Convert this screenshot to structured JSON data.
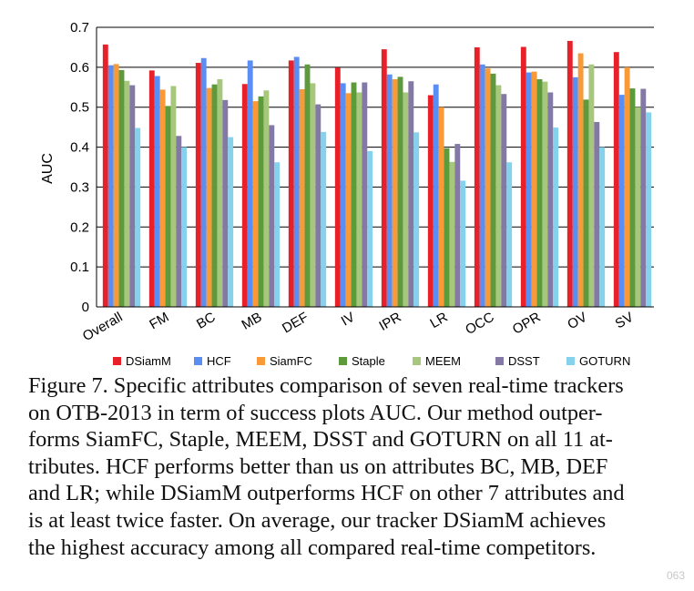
{
  "chart_data": {
    "type": "bar",
    "ylabel": "AUC",
    "ylim": [
      0,
      0.7
    ],
    "yticks": [
      "0",
      "0.1",
      "0.2",
      "0.3",
      "0.4",
      "0.5",
      "0.6",
      "0.7"
    ],
    "grid": "horizontal",
    "legend_position": "bottom",
    "categories": [
      "Overall",
      "FM",
      "BC",
      "MB",
      "DEF",
      "IV",
      "IPR",
      "LR",
      "OCC",
      "OPR",
      "OV",
      "SV"
    ],
    "series": [
      {
        "name": "DSiamM",
        "color": "#e8202a",
        "values": [
          0.657,
          0.592,
          0.611,
          0.558,
          0.617,
          0.599,
          0.645,
          0.53,
          0.65,
          0.651,
          0.666,
          0.638
        ]
      },
      {
        "name": "HCF",
        "color": "#5a8ef2",
        "values": [
          0.605,
          0.578,
          0.623,
          0.617,
          0.626,
          0.56,
          0.582,
          0.557,
          0.607,
          0.587,
          0.575,
          0.531
        ]
      },
      {
        "name": "SiamFC",
        "color": "#f89a38",
        "values": [
          0.608,
          0.544,
          0.548,
          0.515,
          0.545,
          0.535,
          0.57,
          0.5,
          0.597,
          0.589,
          0.635,
          0.6
        ]
      },
      {
        "name": "Staple",
        "color": "#5d9a3c",
        "values": [
          0.593,
          0.503,
          0.557,
          0.527,
          0.607,
          0.562,
          0.576,
          0.397,
          0.584,
          0.57,
          0.519,
          0.547
        ]
      },
      {
        "name": "MEEM",
        "color": "#a7c77d",
        "values": [
          0.566,
          0.553,
          0.57,
          0.542,
          0.56,
          0.537,
          0.537,
          0.363,
          0.555,
          0.564,
          0.607,
          0.5
        ]
      },
      {
        "name": "DSST",
        "color": "#8478a4",
        "values": [
          0.555,
          0.428,
          0.518,
          0.455,
          0.507,
          0.562,
          0.565,
          0.408,
          0.533,
          0.537,
          0.463,
          0.546
        ]
      },
      {
        "name": "GOTURN",
        "color": "#86d2ec",
        "values": [
          0.448,
          0.4,
          0.425,
          0.362,
          0.438,
          0.39,
          0.437,
          0.316,
          0.362,
          0.449,
          0.4,
          0.487
        ]
      }
    ]
  },
  "caption": {
    "lines": [
      "Figure 7. Specific attributes comparison of seven real-time trackers",
      "on OTB-2013 in term of success plots AUC. Our method outper-",
      "forms SiamFC, Staple, MEEM, DSST and GOTURN on all 11 at-",
      "tributes. HCF performs better than us on attributes BC, MB, DEF",
      "and LR; while DSiamM outperforms HCF on other 7 attributes and",
      "is at least twice faster. On average, our tracker DSiamM achieves",
      "the highest accuracy among all compared real-time competitors."
    ]
  },
  "watermark": "063"
}
